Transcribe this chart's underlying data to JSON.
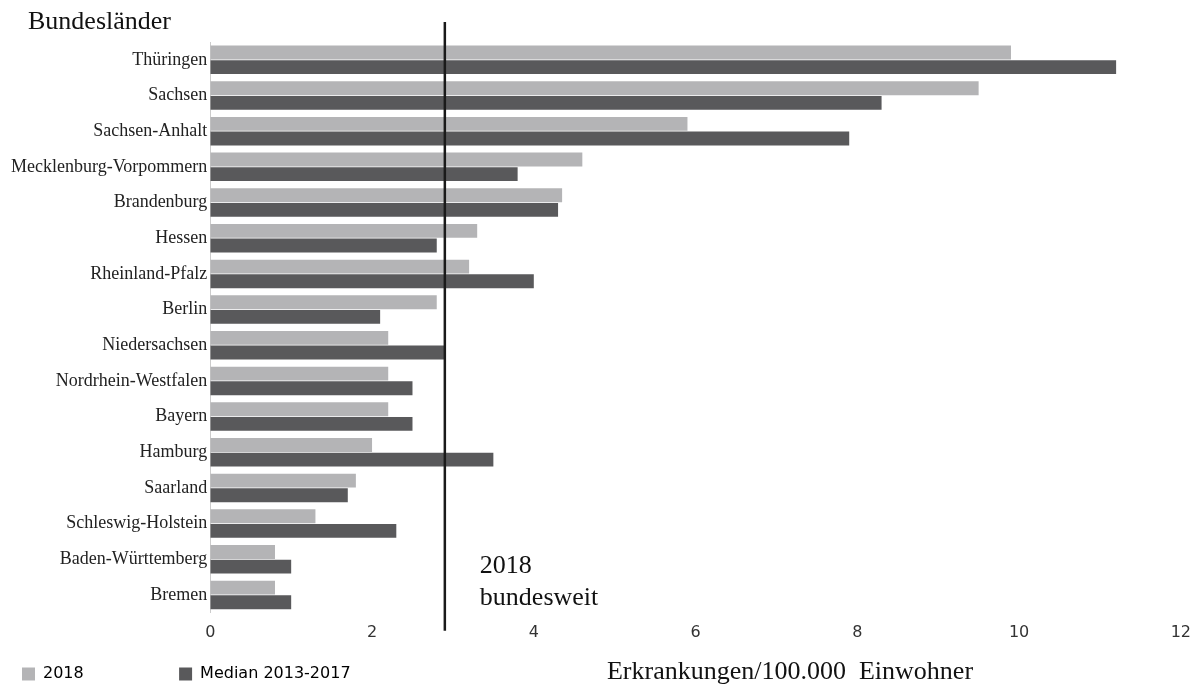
{
  "chart_data": {
    "type": "bar",
    "orientation": "horizontal",
    "ylabel": "Bundesländer",
    "xlabel": "Erkrankungen/100.000  Einwohner",
    "categories": [
      "Thüringen",
      "Sachsen",
      "Sachsen-Anhalt",
      "Mecklenburg-Vorpommern",
      "Brandenburg",
      "Hessen",
      "Rheinland-Pfalz",
      "Berlin",
      "Niedersachsen",
      "Nordrhein-Westfalen",
      "Bayern",
      "Hamburg",
      "Saarland",
      "Schleswig-Holstein",
      "Baden-Württemberg",
      "Bremen"
    ],
    "series": [
      {
        "name": "2018",
        "color": "#b4b4b6",
        "values": [
          9.9,
          9.5,
          5.9,
          4.6,
          4.35,
          3.3,
          3.2,
          2.8,
          2.2,
          2.2,
          2.2,
          2.0,
          1.8,
          1.3,
          0.8,
          0.8
        ]
      },
      {
        "name": "Median 2013-2017",
        "color": "#59595b",
        "values": [
          11.2,
          8.3,
          7.9,
          3.8,
          4.3,
          2.8,
          4.0,
          2.1,
          2.9,
          2.5,
          2.5,
          3.5,
          1.7,
          2.3,
          1.0,
          1.0
        ]
      }
    ],
    "xlim": [
      0,
      12
    ],
    "xticks": [
      0,
      2,
      4,
      6,
      8,
      10,
      12
    ],
    "grid": false,
    "legend": "bottom left",
    "ref_lines": [
      {
        "axis": "x",
        "value": 2.9,
        "label": "2018\nbundesweit",
        "color": "#1a1a1a"
      }
    ]
  }
}
